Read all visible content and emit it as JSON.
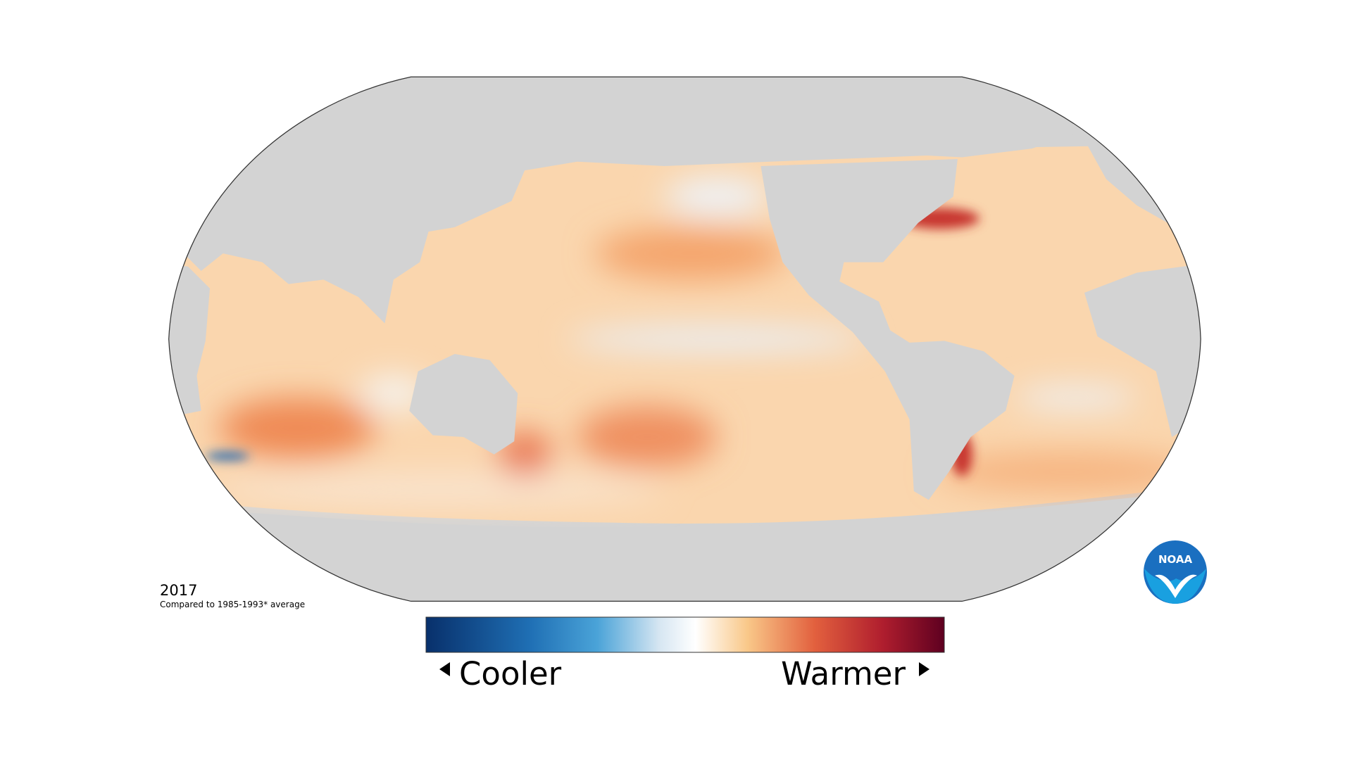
{
  "map": {
    "year": "2017",
    "caption": "Compared to 1985-1993* average"
  },
  "legend": {
    "low_label": "Cooler",
    "high_label": "Warmer"
  },
  "logo": {
    "text": "NOAA"
  }
}
